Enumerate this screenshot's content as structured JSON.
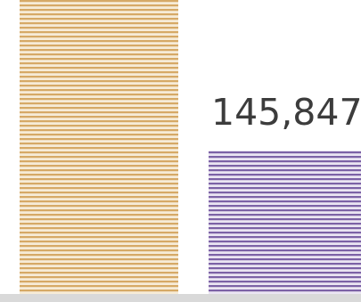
{
  "chart_data": {
    "type": "bar",
    "title": "",
    "xlabel": "",
    "ylabel": "",
    "series": [
      {
        "values": [
          null,
          145847
        ],
        "data_labels": [
          "",
          "145,847"
        ],
        "colors": [
          "#dcb071",
          "#8a70b0"
        ]
      }
    ],
    "bar_colors": {
      "bar_1": {
        "stripe": "#dcb071",
        "light": "#f7eddc"
      },
      "bar_2": {
        "stripe": "#7f65a8",
        "light": "#ece7f3"
      }
    },
    "grid": false,
    "legend": "none"
  }
}
